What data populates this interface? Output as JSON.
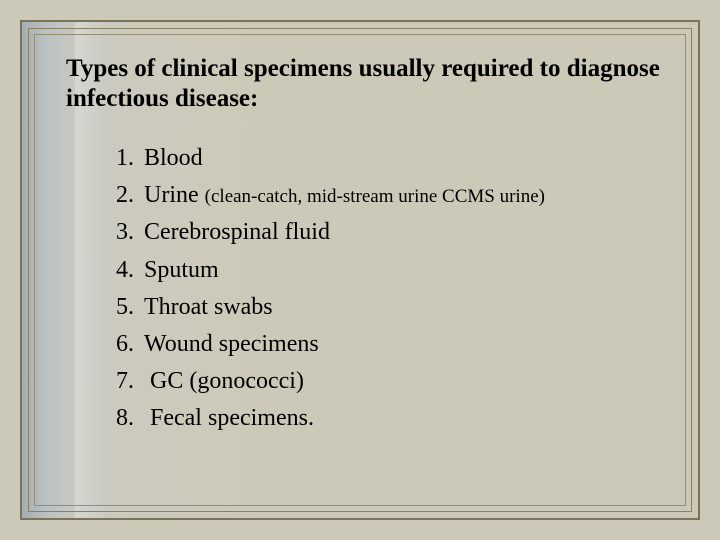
{
  "background_color": "#cdc9b8",
  "frame_colors": [
    "#7c7258",
    "#8a8066",
    "#968c72"
  ],
  "text_color": "#000000",
  "font_family": "Times New Roman",
  "title": "Types of clinical specimens usually required to diagnose infectious disease:",
  "title_fontsize": 25,
  "item_fontsize": 24,
  "paren_fontsize": 19,
  "items": [
    {
      "num": "1.",
      "text": "Blood",
      "paren": ""
    },
    {
      "num": "2.",
      "text": "Urine ",
      "paren": "(clean-catch, mid-stream urine CCMS urine)"
    },
    {
      "num": "3.",
      "text": "Cerebrospinal fluid",
      "paren": ""
    },
    {
      "num": "4.",
      "text": "Sputum",
      "paren": ""
    },
    {
      "num": "5.",
      "text": "Throat swabs",
      "paren": ""
    },
    {
      "num": "6.",
      "text": "Wound specimens",
      "paren": ""
    },
    {
      "num": "7.",
      "text": " GC (gonococci)",
      "paren": "",
      "indent": true
    },
    {
      "num": "8.",
      "text": " Fecal specimens.",
      "paren": "",
      "indent": true
    }
  ]
}
